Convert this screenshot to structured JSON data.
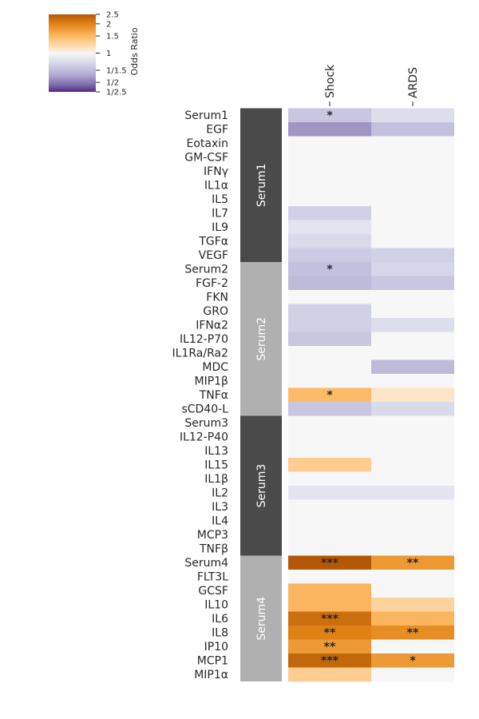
{
  "chart_data": {
    "type": "heatmap",
    "columns": [
      "Shock",
      "ARDS"
    ],
    "rows": [
      "Serum1",
      "EGF",
      "Eotaxin",
      "GM-CSF",
      "IFNγ",
      "IL1α",
      "IL5",
      "IL7",
      "IL9",
      "TGFα",
      "VEGF",
      "Serum2",
      "FGF-2",
      "FKN",
      "GRO",
      "IFNα2",
      "IL12-P70",
      "IL1Ra/Ra2",
      "MDC",
      "MIP1β",
      "TNFα",
      "sCD40-L",
      "Serum3",
      "IL12-P40",
      "IL13",
      "IL15",
      "IL1β",
      "IL2",
      "IL3",
      "IL4",
      "MCP3",
      "TNFβ",
      "Serum4",
      "FLT3L",
      "GCSF",
      "IL10",
      "IL6",
      "IL8",
      "IP10",
      "MCP1",
      "MIP1α"
    ],
    "groups": [
      {
        "name": "Serum1",
        "rows": 11,
        "color": "#4a4a4a"
      },
      {
        "name": "Serum2",
        "rows": 11,
        "color": "#b0b0b0"
      },
      {
        "name": "Serum3",
        "rows": 10,
        "color": "#4a4a4a"
      },
      {
        "name": "Serum4",
        "rows": 9,
        "color": "#b0b0b0"
      }
    ],
    "odds_ratio": [
      [
        0.72,
        0.82
      ],
      [
        0.58,
        0.7
      ],
      [
        1.0,
        1.0
      ],
      [
        1.0,
        1.0
      ],
      [
        1.0,
        1.0
      ],
      [
        1.0,
        1.0
      ],
      [
        1.0,
        1.0
      ],
      [
        0.76,
        1.0
      ],
      [
        0.86,
        1.0
      ],
      [
        0.8,
        1.0
      ],
      [
        0.74,
        0.76
      ],
      [
        0.7,
        0.78
      ],
      [
        0.68,
        0.72
      ],
      [
        1.0,
        1.0
      ],
      [
        0.76,
        1.0
      ],
      [
        0.76,
        0.82
      ],
      [
        0.72,
        1.0
      ],
      [
        1.0,
        1.0
      ],
      [
        1.0,
        0.68
      ],
      [
        1.0,
        1.0
      ],
      [
        1.55,
        1.18
      ],
      [
        0.72,
        0.8
      ],
      [
        1.0,
        1.0
      ],
      [
        1.0,
        1.0
      ],
      [
        1.0,
        1.0
      ],
      [
        1.4,
        1.0
      ],
      [
        1.0,
        1.0
      ],
      [
        0.86,
        0.86
      ],
      [
        1.0,
        1.0
      ],
      [
        1.0,
        1.0
      ],
      [
        1.0,
        1.0
      ],
      [
        1.0,
        1.0
      ],
      [
        2.5,
        1.8
      ],
      [
        1.0,
        1.0
      ],
      [
        1.6,
        1.0
      ],
      [
        1.6,
        1.35
      ],
      [
        2.2,
        1.6
      ],
      [
        2.0,
        1.9
      ],
      [
        1.8,
        1.0
      ],
      [
        2.3,
        1.8
      ],
      [
        1.4,
        1.0
      ]
    ],
    "significance": [
      [
        "*",
        ""
      ],
      [
        "",
        ""
      ],
      [
        "",
        ""
      ],
      [
        "",
        ""
      ],
      [
        "",
        ""
      ],
      [
        "",
        ""
      ],
      [
        "",
        ""
      ],
      [
        "",
        ""
      ],
      [
        "",
        ""
      ],
      [
        "",
        ""
      ],
      [
        "",
        ""
      ],
      [
        "*",
        ""
      ],
      [
        "",
        ""
      ],
      [
        "",
        ""
      ],
      [
        "",
        ""
      ],
      [
        "",
        ""
      ],
      [
        "",
        ""
      ],
      [
        "",
        ""
      ],
      [
        "",
        ""
      ],
      [
        "",
        ""
      ],
      [
        "*",
        ""
      ],
      [
        "",
        ""
      ],
      [
        "",
        ""
      ],
      [
        "",
        ""
      ],
      [
        "",
        ""
      ],
      [
        "",
        ""
      ],
      [
        "",
        ""
      ],
      [
        "",
        ""
      ],
      [
        "",
        ""
      ],
      [
        "",
        ""
      ],
      [
        "",
        ""
      ],
      [
        "",
        ""
      ],
      [
        "***",
        "**"
      ],
      [
        "",
        ""
      ],
      [
        "",
        ""
      ],
      [
        "",
        ""
      ],
      [
        "***",
        ""
      ],
      [
        "**",
        "**"
      ],
      [
        "**",
        ""
      ],
      [
        "***",
        "*"
      ],
      [
        "",
        ""
      ]
    ],
    "colorbar": {
      "title": "Odds Ratio",
      "scale": "log",
      "range": [
        0.4,
        2.5
      ],
      "ticks": [
        {
          "value": 2.5,
          "label": "2.5"
        },
        {
          "value": 2,
          "label": "2"
        },
        {
          "value": 1.5,
          "label": "1.5"
        },
        {
          "value": 1,
          "label": "1"
        },
        {
          "value": 0.6667,
          "label": "1/1.5"
        },
        {
          "value": 0.5,
          "label": "1/2"
        },
        {
          "value": 0.4,
          "label": "1/2.5"
        }
      ],
      "colors": {
        "low": "#5b3f8f",
        "mid": "#f7f7f7",
        "high": "#b35806"
      }
    }
  }
}
